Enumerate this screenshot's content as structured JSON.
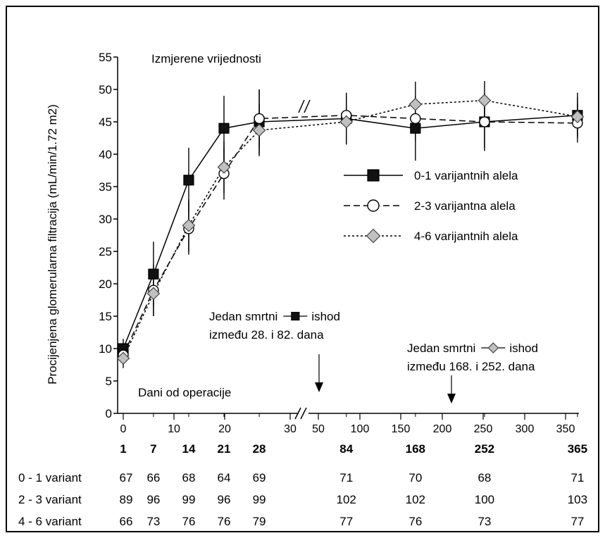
{
  "chart_data": {
    "type": "line",
    "title": "",
    "ylabel": "Procijenjena glomerularna filtracija (mL/min/1.72 m2)",
    "xlabel": "Dani od operacije",
    "annotation_top": "Izmjerene vrijednosti",
    "ylim": [
      0,
      55
    ],
    "y_ticks": [
      0,
      5,
      10,
      15,
      20,
      25,
      30,
      35,
      40,
      45,
      50,
      55
    ],
    "y_tick_labels": [
      "0",
      "5",
      "10",
      "15",
      "20",
      "25",
      "30",
      "35",
      "40",
      "45",
      "50",
      "55"
    ],
    "x_tick_labels_segment1": [
      "0",
      "10",
      "20",
      "30"
    ],
    "x_tick_labels_segment2": [
      "50",
      "100",
      "150",
      "200",
      "250",
      "300",
      "350"
    ],
    "x": [
      1,
      7,
      14,
      21,
      28,
      84,
      168,
      252,
      365
    ],
    "x_day_labels": [
      "1",
      "7",
      "14",
      "21",
      "28",
      "84",
      "168",
      "252",
      "365"
    ],
    "grid": false,
    "legend_position": "right",
    "series": [
      {
        "name": "0-1 varijantnih alela",
        "marker": "square",
        "dash": "solid",
        "fill": "#111111",
        "values": [
          10,
          21.5,
          36,
          44,
          45,
          45.5,
          44,
          45,
          46
        ],
        "errors": [
          1.5,
          5,
          5,
          5,
          5,
          4,
          5,
          4.5,
          3.5
        ]
      },
      {
        "name": "2-3 varijantna alela",
        "marker": "circle",
        "dash": "dashed",
        "fill": "#ffffff",
        "values": [
          9,
          19,
          28.5,
          37,
          45.5,
          46,
          45.5,
          45,
          44.8
        ],
        "errors": [
          1.5,
          4,
          4,
          4,
          4.5,
          3,
          3.5,
          4,
          3
        ]
      },
      {
        "name": "4-6 varijantnih alela",
        "marker": "diamond",
        "dash": "dotted",
        "fill": "#c0c0c0",
        "values": [
          8.5,
          18.5,
          29,
          38,
          43.7,
          45,
          47.7,
          48.3,
          45.8
        ],
        "errors": [
          1.5,
          3.5,
          4,
          4,
          4,
          3.5,
          3.5,
          3,
          3
        ]
      }
    ],
    "events": [
      {
        "line1_prefix": "Jedan smrtni",
        "line1_suffix": "ishod",
        "line2": "između 28. i 82. dana",
        "series_marker": "square",
        "x_day": 55
      },
      {
        "line1_prefix": "Jedan smrtni",
        "line1_suffix": "ishod",
        "line2": "između 168. i 252. dana",
        "series_marker": "diamond",
        "x_day": 210
      }
    ],
    "table": {
      "rows": [
        {
          "label": "0 - 1 variant",
          "values": [
            "67",
            "66",
            "68",
            "64",
            "69",
            "71",
            "70",
            "68",
            "71"
          ]
        },
        {
          "label": "2 - 3 variant",
          "values": [
            "89",
            "96",
            "99",
            "96",
            "99",
            "102",
            "102",
            "100",
            "103"
          ]
        },
        {
          "label": "4 - 6 variant",
          "values": [
            "66",
            "73",
            "76",
            "76",
            "79",
            "77",
            "76",
            "73",
            "77"
          ]
        }
      ]
    }
  }
}
